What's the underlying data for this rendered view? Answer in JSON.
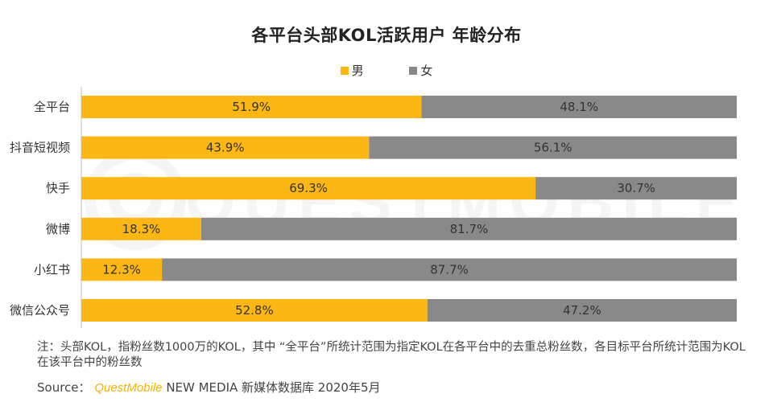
{
  "chart_data": {
    "type": "bar",
    "orientation": "horizontal",
    "stacked": true,
    "title": "各平台头部KOL活跃用户 年龄分布",
    "categories": [
      "全平台",
      "抖音短视频",
      "快手",
      "微博",
      "小红书",
      "微信公众号"
    ],
    "series": [
      {
        "name": "男",
        "color": "#fcb714",
        "values": [
          51.9,
          43.9,
          69.3,
          18.3,
          12.3,
          52.8
        ],
        "labels": [
          "51.9%",
          "43.9%",
          "69.3%",
          "18.3%",
          "12.3%",
          "52.8%"
        ]
      },
      {
        "name": "女",
        "color": "#898989",
        "values": [
          48.1,
          56.1,
          30.7,
          81.7,
          87.7,
          47.2
        ],
        "labels": [
          "48.1%",
          "56.1%",
          "30.7%",
          "81.7%",
          "87.7%",
          "47.2%"
        ]
      }
    ],
    "xlim": [
      0,
      100
    ],
    "legend": "top-center"
  },
  "footnote": "注：头部KOL，指粉丝数1000万的KOL，其中 “全平台”所统计范围为指定KOL在各平台中的去重总粉丝数，各目标平台所统计范围为KOL在该平台中的粉丝数",
  "source": {
    "prefix": "Source：",
    "brand": "QuestMobile",
    "rest": "NEW MEDIA 新媒体数据库 2020年5月"
  },
  "watermark": "QUESTMOBILE"
}
